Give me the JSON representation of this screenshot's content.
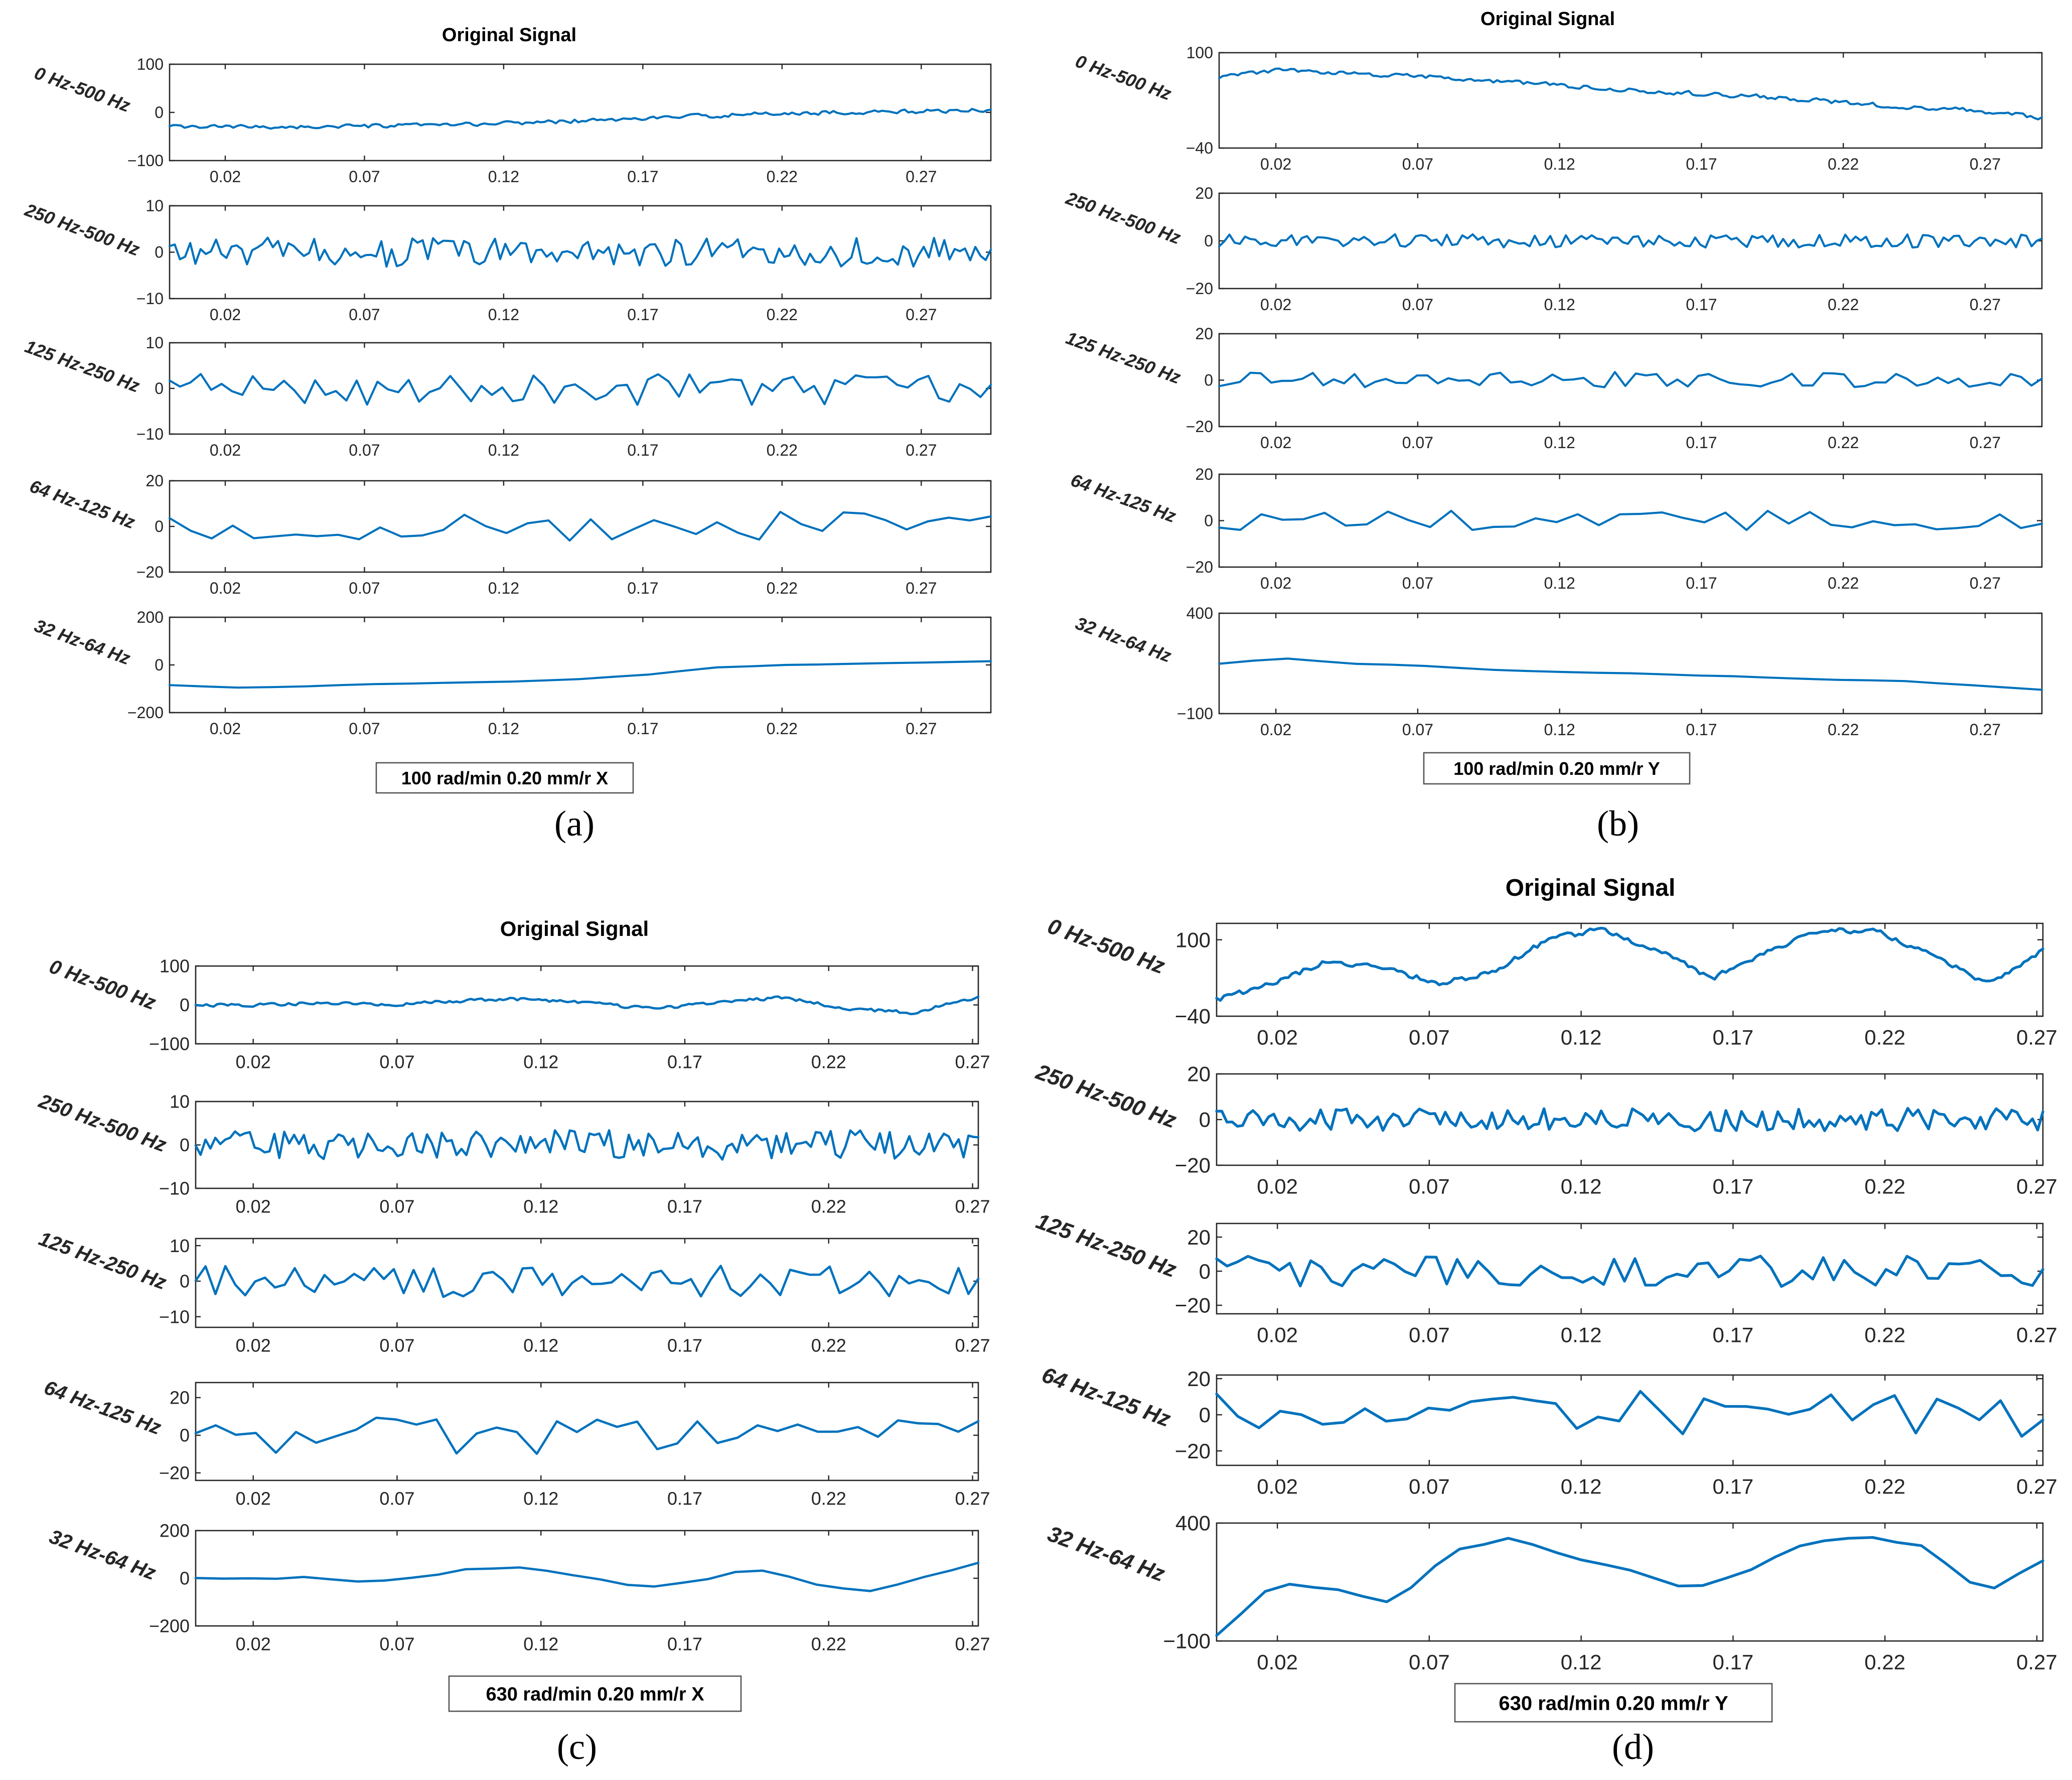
{
  "chart_data": [
    {
      "type": "line",
      "panel_label": "(a)",
      "title": "Original Signal",
      "caption": "100 rad/min 0.20 mm/r X",
      "x_ticks": [
        "0.02",
        "0.07",
        "0.12",
        "0.17",
        "0.22",
        "0.27"
      ],
      "x_tick_values": [
        0.02,
        0.07,
        0.12,
        0.17,
        0.22,
        0.27
      ],
      "xlim": [
        0.0,
        0.295
      ],
      "subplots": [
        {
          "name": "0 Hz-500 Hz",
          "ylim": [
            -100,
            100
          ],
          "y_ticks": [
            "100",
            "0",
            "−100"
          ],
          "y_tick_values": [
            100,
            0,
            -100
          ],
          "n": 220,
          "trend": [
            -30,
            -30,
            -30,
            -28,
            -25,
            -20,
            -15,
            -8,
            -3,
            0,
            2,
            5
          ],
          "noise": 5,
          "smooth": 0.25
        },
        {
          "name": "250 Hz-500 Hz",
          "ylim": [
            -10,
            10
          ],
          "y_ticks": [
            "10",
            "0",
            "−10"
          ],
          "y_tick_values": [
            10,
            0,
            -10
          ],
          "n": 160,
          "trend": [
            0,
            0
          ],
          "noise": 3.2,
          "smooth": 0
        },
        {
          "name": "125 Hz-250 Hz",
          "ylim": [
            -10,
            10
          ],
          "y_ticks": [
            "10",
            "0",
            "−10"
          ],
          "y_tick_values": [
            10,
            0,
            -10
          ],
          "n": 80,
          "trend": [
            0,
            0
          ],
          "noise": 3.6,
          "smooth": 0
        },
        {
          "name": "64 Hz-125 Hz",
          "ylim": [
            -20,
            20
          ],
          "y_ticks": [
            "20",
            "0",
            "−20"
          ],
          "y_tick_values": [
            20,
            0,
            -20
          ],
          "n": 40,
          "trend": [
            0,
            0
          ],
          "noise": 6.5,
          "smooth": 0
        },
        {
          "name": "32 Hz-64 Hz",
          "ylim": [
            -200,
            200
          ],
          "y_ticks": [
            "200",
            "0",
            "−200"
          ],
          "y_tick_values": [
            200,
            0,
            -200
          ],
          "n": 25,
          "trend": [
            -85,
            -95,
            -90,
            -80,
            -75,
            -70,
            -60,
            -40,
            -10,
            0,
            5,
            10,
            15
          ],
          "noise": 1,
          "smooth": 0.4
        }
      ]
    },
    {
      "type": "line",
      "panel_label": "(b)",
      "title": "Original Signal",
      "caption": "100 rad/min 0.20 mm/r Y",
      "x_ticks": [
        "0.02",
        "0.07",
        "0.12",
        "0.17",
        "0.22",
        "0.27"
      ],
      "x_tick_values": [
        0.02,
        0.07,
        0.12,
        0.17,
        0.22,
        0.27
      ],
      "xlim": [
        0.0,
        0.29
      ],
      "subplots": [
        {
          "name": "0 Hz-500 Hz",
          "ylim": [
            -40,
            100
          ],
          "y_ticks": [
            "100",
            "−40"
          ],
          "y_tick_values": [
            100,
            -40
          ],
          "n": 220,
          "trend": [
            65,
            75,
            68,
            65,
            58,
            52,
            45,
            40,
            35,
            28,
            20,
            15,
            5
          ],
          "noise": 4,
          "smooth": 0.25
        },
        {
          "name": "250 Hz-500 Hz",
          "ylim": [
            -20,
            20
          ],
          "y_ticks": [
            "20",
            "0",
            "−20"
          ],
          "y_tick_values": [
            20,
            0,
            -20
          ],
          "n": 160,
          "trend": [
            0,
            0
          ],
          "noise": 2.8,
          "smooth": 0
        },
        {
          "name": "125 Hz-250 Hz",
          "ylim": [
            -20,
            20
          ],
          "y_ticks": [
            "20",
            "0",
            "−20"
          ],
          "y_tick_values": [
            20,
            0,
            -20
          ],
          "n": 80,
          "trend": [
            0,
            0
          ],
          "noise": 3.5,
          "smooth": 0
        },
        {
          "name": "64 Hz-125 Hz",
          "ylim": [
            -20,
            20
          ],
          "y_ticks": [
            "20",
            "0",
            "−20"
          ],
          "y_tick_values": [
            20,
            0,
            -20
          ],
          "n": 40,
          "trend": [
            0,
            0
          ],
          "noise": 4.5,
          "smooth": 0
        },
        {
          "name": "32 Hz-64 Hz",
          "ylim": [
            -100,
            400
          ],
          "y_ticks": [
            "400",
            "−100"
          ],
          "y_tick_values": [
            400,
            -100
          ],
          "n": 25,
          "trend": [
            150,
            175,
            150,
            140,
            120,
            110,
            100,
            90,
            80,
            70,
            60,
            40,
            20
          ],
          "noise": 4,
          "smooth": 0.4
        }
      ]
    },
    {
      "type": "line",
      "panel_label": "(c)",
      "title": "Original Signal",
      "caption": "630 rad/min 0.20 mm/r X",
      "x_ticks": [
        "0.02",
        "0.07",
        "0.12",
        "0.17",
        "0.22",
        "0.27"
      ],
      "x_tick_values": [
        0.02,
        0.07,
        0.12,
        0.17,
        0.22,
        0.27
      ],
      "xlim": [
        0.0,
        0.272
      ],
      "subplots": [
        {
          "name": "0 Hz-500 Hz",
          "ylim": [
            -100,
            100
          ],
          "y_ticks": [
            "100",
            "0",
            "−100"
          ],
          "y_tick_values": [
            100,
            0,
            -100
          ],
          "n": 220,
          "trend": [
            0,
            0,
            5,
            0,
            10,
            15,
            5,
            -10,
            5,
            20,
            -10,
            -20,
            20
          ],
          "noise": 5,
          "smooth": 0.25
        },
        {
          "name": "250 Hz-500 Hz",
          "ylim": [
            -10,
            10
          ],
          "y_ticks": [
            "10",
            "0",
            "−10"
          ],
          "y_tick_values": [
            10,
            0,
            -10
          ],
          "n": 160,
          "trend": [
            0,
            0
          ],
          "noise": 3.4,
          "smooth": 0
        },
        {
          "name": "125 Hz-250 Hz",
          "ylim": [
            -13,
            12
          ],
          "y_ticks": [
            "10",
            "0",
            "−10"
          ],
          "y_tick_values": [
            10,
            0,
            -10
          ],
          "n": 80,
          "trend": [
            0,
            0
          ],
          "noise": 4.5,
          "smooth": 0
        },
        {
          "name": "64 Hz-125 Hz",
          "ylim": [
            -24,
            28
          ],
          "y_ticks": [
            "20",
            "0",
            "−20"
          ],
          "y_tick_values": [
            20,
            0,
            -20
          ],
          "n": 40,
          "trend": [
            0,
            0
          ],
          "noise": 10,
          "smooth": 0
        },
        {
          "name": "32 Hz-64 Hz",
          "ylim": [
            -200,
            200
          ],
          "y_ticks": [
            "200",
            "0",
            "−200"
          ],
          "y_tick_values": [
            200,
            0,
            -200
          ],
          "n": 30,
          "trend": [
            0,
            -5,
            5,
            -10,
            0,
            40,
            45,
            0,
            -40,
            -15,
            40,
            -20,
            -60,
            0,
            65
          ],
          "noise": 8,
          "smooth": 0.4
        }
      ]
    },
    {
      "type": "line",
      "panel_label": "(d)",
      "title": "Original Signal",
      "caption": "630 rad/min 0.20 mm/r Y",
      "x_ticks": [
        "0.02",
        "0.07",
        "0.12",
        "0.17",
        "0.22",
        "0.27"
      ],
      "x_tick_values": [
        0.02,
        0.07,
        0.12,
        0.17,
        0.22,
        0.27
      ],
      "xlim": [
        0.0,
        0.272
      ],
      "subplots": [
        {
          "name": "0 Hz-500 Hz",
          "ylim": [
            -40,
            130
          ],
          "y_ticks": [
            "100",
            "−40"
          ],
          "y_tick_values": [
            100,
            -40
          ],
          "n": 220,
          "trend": [
            -10,
            20,
            60,
            50,
            20,
            40,
            100,
            120,
            80,
            30,
            80,
            120,
            115,
            70,
            20,
            80
          ],
          "noise": 6,
          "smooth": 0.25
        },
        {
          "name": "250 Hz-500 Hz",
          "ylim": [
            -20,
            20
          ],
          "y_ticks": [
            "20",
            "0",
            "−20"
          ],
          "y_tick_values": [
            20,
            0,
            -20
          ],
          "n": 160,
          "trend": [
            0,
            0
          ],
          "noise": 5,
          "smooth": 0
        },
        {
          "name": "125 Hz-250 Hz",
          "ylim": [
            -25,
            28
          ],
          "y_ticks": [
            "20",
            "0",
            "−20"
          ],
          "y_tick_values": [
            20,
            0,
            -20
          ],
          "n": 80,
          "trend": [
            0,
            0
          ],
          "noise": 9,
          "smooth": 0
        },
        {
          "name": "64 Hz-125 Hz",
          "ylim": [
            -28,
            22
          ],
          "y_ticks": [
            "20",
            "0",
            "−20"
          ],
          "y_tick_values": [
            20,
            0,
            -20
          ],
          "n": 40,
          "trend": [
            0,
            0
          ],
          "noise": 13,
          "smooth": 0
        },
        {
          "name": "32 Hz-64 Hz",
          "ylim": [
            -100,
            400
          ],
          "y_ticks": [
            "400",
            "−100"
          ],
          "y_tick_values": [
            400,
            -100
          ],
          "n": 35,
          "trend": [
            -80,
            150,
            120,
            60,
            280,
            340,
            260,
            200,
            120,
            200,
            320,
            340,
            300,
            100,
            240
          ],
          "noise": 6,
          "smooth": 0.4
        }
      ]
    }
  ]
}
